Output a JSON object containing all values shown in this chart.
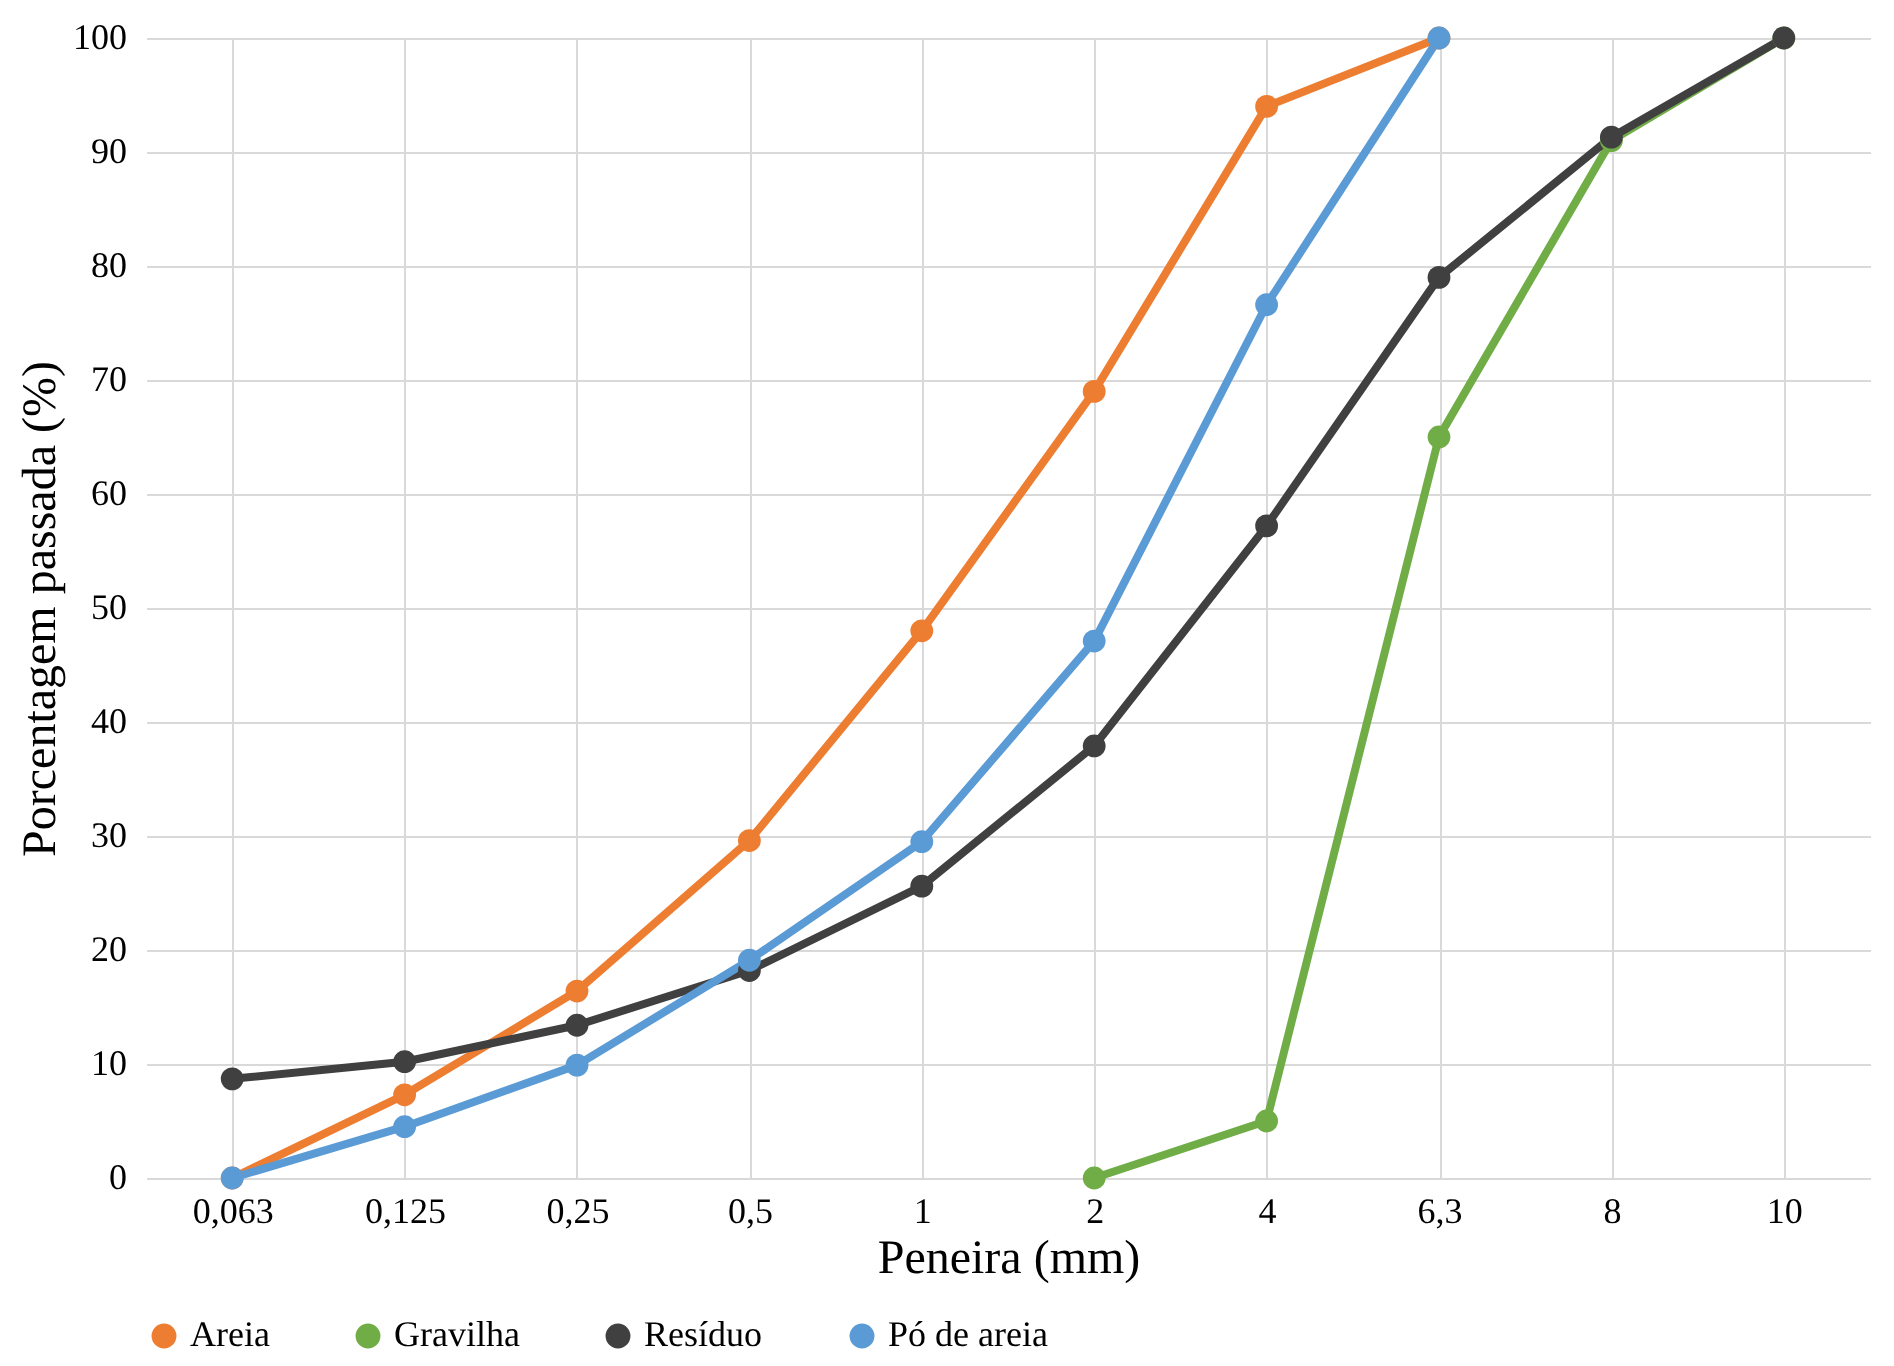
{
  "chart_data": {
    "type": "line",
    "xlabel": "Peneira (mm)",
    "ylabel": "Porcentagem passada (%)",
    "categories": [
      "0,063",
      "0,125",
      "0,25",
      "0,5",
      "1",
      "2",
      "4",
      "6,3",
      "8",
      "10"
    ],
    "series": [
      {
        "name": "Areia",
        "color": "#ed7d31",
        "values": [
          0,
          7.3,
          16.4,
          29.6,
          48,
          69,
          94,
          100,
          null,
          null
        ]
      },
      {
        "name": "Gravilha",
        "color": "#70ad47",
        "values": [
          null,
          null,
          null,
          null,
          null,
          0,
          5,
          65,
          91,
          100
        ]
      },
      {
        "name": "Resíduo",
        "color": "#404040",
        "values": [
          8.7,
          10.2,
          13.4,
          18.2,
          25.6,
          37.9,
          57.2,
          79,
          91.3,
          100
        ]
      },
      {
        "name": "Pó de areia",
        "color": "#5b9bd5",
        "values": [
          0,
          4.5,
          9.9,
          19.1,
          29.5,
          47.1,
          76.6,
          100,
          null,
          null
        ]
      }
    ],
    "ylim": [
      0,
      100
    ],
    "yticks": [
      0,
      10,
      20,
      30,
      40,
      50,
      60,
      70,
      80,
      90,
      100
    ],
    "grid": true,
    "legend": "bottom",
    "marker": "circle"
  }
}
